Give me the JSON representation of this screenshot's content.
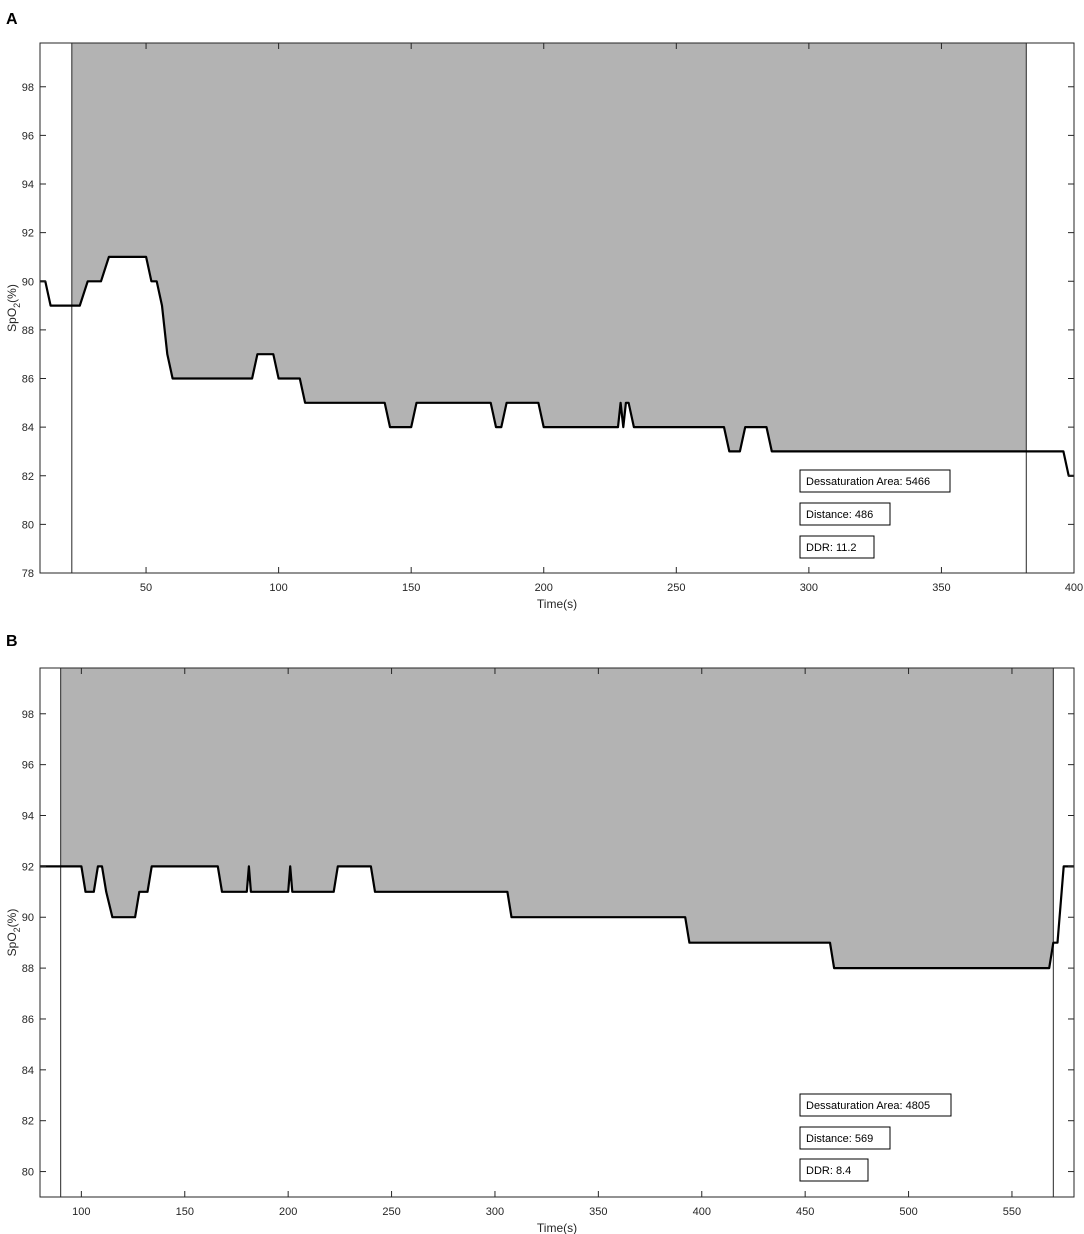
{
  "chart_data": [
    {
      "type": "line",
      "panel_label": "A",
      "xlabel": "Time(s)",
      "ylabel_base": "SpO",
      "ylabel_sub": "2",
      "ylabel_suffix": "(%)",
      "xlim": [
        10,
        400
      ],
      "ylim": [
        78,
        99.8
      ],
      "xticks": [
        50,
        100,
        150,
        200,
        250,
        300,
        350,
        400
      ],
      "yticks": [
        78,
        80,
        82,
        84,
        86,
        88,
        90,
        92,
        94,
        96,
        98
      ],
      "grid": false,
      "shaded_region": {
        "x_start": 22,
        "x_end": 382,
        "y_top": 99.8,
        "color": "#b3b3b3"
      },
      "line_color": "#000000",
      "series": [
        {
          "x": [
            10,
            12,
            14,
            22,
            25,
            28,
            33,
            36,
            50,
            52,
            54,
            56,
            58,
            60,
            80,
            82,
            90,
            92,
            98,
            100,
            108,
            110,
            140,
            142,
            150,
            152,
            180,
            182,
            184,
            186,
            198,
            200,
            228,
            229,
            230,
            231,
            232,
            234,
            268,
            270,
            274,
            276,
            284,
            286,
            300,
            380,
            396,
            398,
            400
          ],
          "y": [
            90,
            90,
            89,
            89,
            89,
            90,
            90,
            91,
            91,
            90,
            90,
            89,
            87,
            86,
            86,
            86,
            86,
            87,
            87,
            86,
            86,
            85,
            85,
            84,
            84,
            85,
            85,
            84,
            84,
            85,
            85,
            84,
            84,
            85,
            84,
            85,
            85,
            84,
            84,
            83,
            83,
            84,
            84,
            83,
            83,
            83,
            83,
            82,
            82
          ]
        }
      ],
      "annotations": [
        "Dessaturation Area: 5466",
        "Distance: 486",
        "DDR: 11.2"
      ]
    },
    {
      "type": "line",
      "panel_label": "B",
      "xlabel": "Time(s)",
      "ylabel_base": "SpO",
      "ylabel_sub": "2",
      "ylabel_suffix": "(%)",
      "xlim": [
        80,
        580
      ],
      "ylim": [
        79,
        99.8
      ],
      "xticks": [
        100,
        150,
        200,
        250,
        300,
        350,
        400,
        450,
        500,
        550
      ],
      "yticks": [
        80,
        82,
        84,
        86,
        88,
        90,
        92,
        94,
        96,
        98
      ],
      "grid": false,
      "shaded_region": {
        "x_start": 90,
        "x_end": 570,
        "y_top": 99.8,
        "color": "#b3b3b3"
      },
      "line_color": "#000000",
      "series": [
        {
          "x": [
            80,
            100,
            102,
            106,
            108,
            110,
            112,
            115,
            126,
            128,
            132,
            134,
            166,
            168,
            180,
            181,
            182,
            184,
            200,
            201,
            202,
            204,
            222,
            224,
            240,
            242,
            306,
            308,
            392,
            394,
            462,
            464,
            568,
            570,
            572,
            575,
            580
          ],
          "y": [
            92,
            92,
            91,
            91,
            92,
            92,
            91,
            90,
            90,
            91,
            91,
            92,
            92,
            91,
            91,
            92,
            91,
            91,
            91,
            92,
            91,
            91,
            91,
            92,
            92,
            91,
            91,
            90,
            90,
            89,
            89,
            88,
            88,
            89,
            89,
            92,
            92
          ]
        }
      ],
      "annotations": [
        "Dessaturation Area: 4805",
        "Distance: 569",
        "DDR: 8.4"
      ]
    }
  ]
}
